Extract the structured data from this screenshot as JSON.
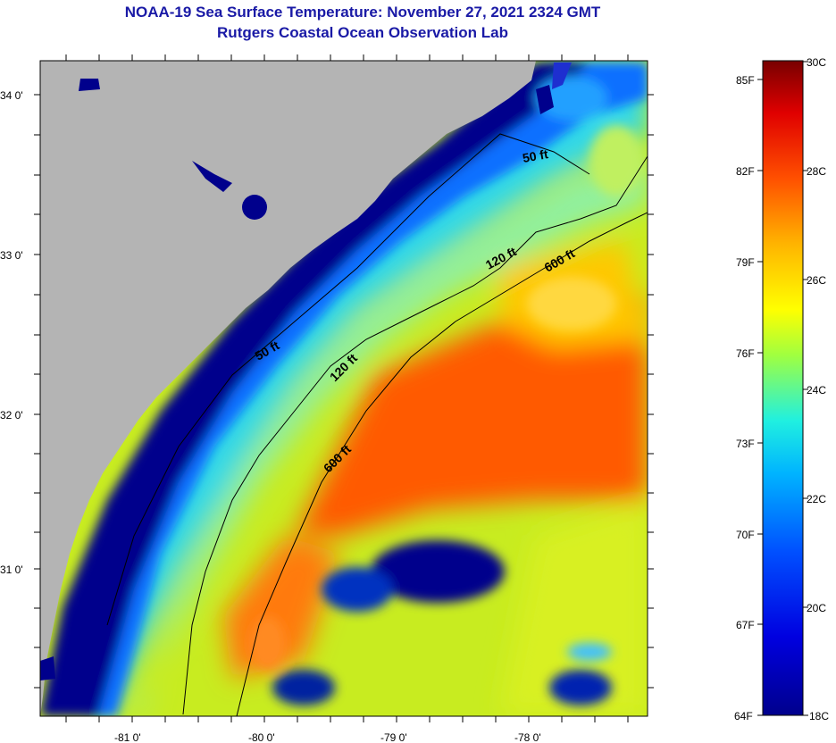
{
  "title": "NOAA-19 Sea Surface Temperature:  November 27, 2021 2324 GMT",
  "subtitle": "Rutgers Coastal Ocean Observation Lab",
  "map": {
    "latitude_labels": [
      "34 0'",
      "33 0'",
      "32 0'",
      "31 0'"
    ],
    "longitude_labels": [
      "-81 0'",
      "-80 0'",
      "-79 0'",
      "-78 0'"
    ],
    "contour_labels": [
      {
        "id": "50ft-north",
        "text": "50 ft"
      },
      {
        "id": "50ft-south",
        "text": "50 ft"
      },
      {
        "id": "120ft-north",
        "text": "120 ft"
      },
      {
        "id": "120ft-south",
        "text": "120 ft"
      },
      {
        "id": "600ft-north",
        "text": "600 ft"
      },
      {
        "id": "600ft-south",
        "text": "600 ft"
      }
    ]
  },
  "colorbar": {
    "celsius_labels": [
      "30C",
      "28C",
      "26C",
      "24C",
      "22C",
      "20C",
      "18C"
    ],
    "fahrenheit_labels": [
      "85F",
      "82F",
      "79F",
      "76F",
      "73F",
      "70F",
      "67F",
      "64F"
    ],
    "min_c": 18,
    "max_c": 30
  },
  "colors": {
    "title": "#1a1aa6",
    "land": "#b4b4b4",
    "cold_water": "#00008c",
    "warm_water": "#ff5000"
  }
}
